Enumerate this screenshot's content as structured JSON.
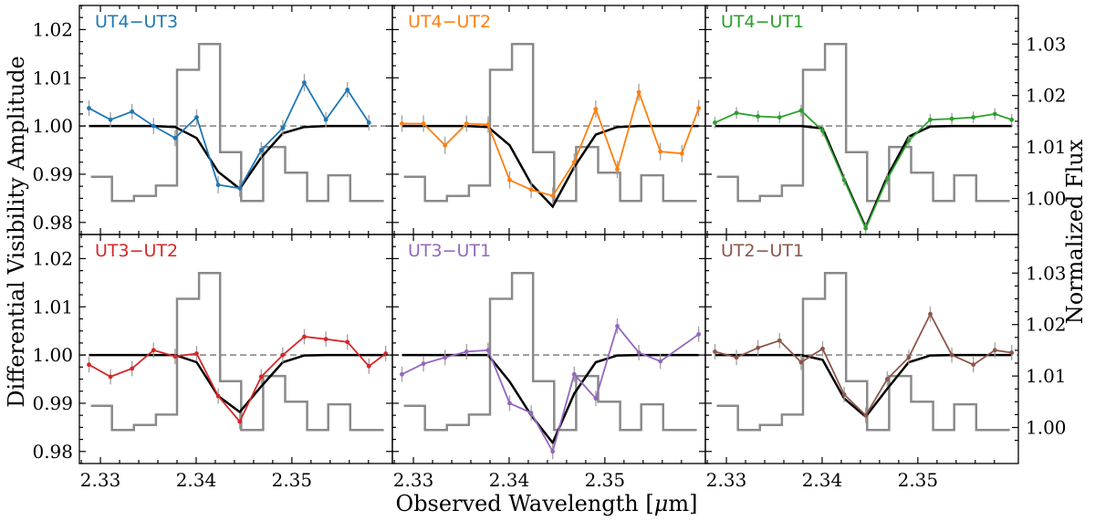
{
  "figure": {
    "xlabel": "Observed Wavelength [$\\mu$m]",
    "xlabel_prefix": "Observed Wavelength [",
    "xlabel_mu": "μ",
    "xlabel_suffix": "m]",
    "ylabel_left": "Differential Visibility Amplitude",
    "ylabel_right": "Normalized Flux",
    "xlim": [
      2.3278,
      2.3605
    ],
    "ylim_left": [
      0.9775,
      1.025
    ],
    "ylim_right": [
      0.993,
      1.0375
    ],
    "xticks": [
      2.33,
      2.34,
      2.35
    ],
    "xtick_labels": [
      "2.33",
      "2.34",
      "2.35"
    ],
    "yticks_left": [
      0.98,
      0.99,
      1.0,
      1.01,
      1.02
    ],
    "ytick_labels_left": [
      "0.98",
      "0.99",
      "1.00",
      "1.01",
      "1.02"
    ],
    "yticks_right": [
      1.0,
      1.01,
      1.02,
      1.03
    ],
    "ytick_labels_right": [
      "1.00",
      "1.01",
      "1.02",
      "1.03"
    ],
    "reference_line": 1.0
  },
  "chart_data": {
    "type": "line",
    "wavelength": [
      2.3288,
      2.33105,
      2.3333,
      2.33555,
      2.3378,
      2.34005,
      2.3423,
      2.34455,
      2.3468,
      2.34905,
      2.3513,
      2.35355,
      2.3558,
      2.35805
    ],
    "spectrum_edges": [
      2.329,
      2.3312,
      2.3335,
      2.3358,
      2.338,
      2.3403,
      2.3425,
      2.3447,
      2.347,
      2.3493,
      2.3516,
      2.3538,
      2.3561,
      2.3584,
      2.3596
    ],
    "spectrum_flux": [
      1.0042,
      0.9995,
      1.0005,
      1.0025,
      1.025,
      1.03,
      1.009,
      0.9995,
      1.01,
      1.005,
      0.9995,
      1.0045,
      0.9995,
      0.9995
    ],
    "panels": [
      {
        "name": "UT4−UT3",
        "color": "#1f77b4",
        "data": [
          1.0037,
          1.0013,
          1.003,
          1.0,
          0.9975,
          1.0018,
          0.9878,
          0.9871,
          0.995,
          0.9996,
          1.009,
          1.0013,
          1.0075,
          1.0007
        ],
        "errors": [
          0.0016,
          0.0016,
          0.0016,
          0.0017,
          0.0017,
          0.0017,
          0.0018,
          0.0018,
          0.0017,
          0.0017,
          0.0018,
          0.0016,
          0.0016,
          0.0016
        ],
        "model": [
          1.0,
          1.0,
          1.0,
          1.0,
          0.9998,
          0.9975,
          0.9905,
          0.987,
          0.9935,
          0.9985,
          0.9998,
          1.0,
          1.0,
          1.0
        ]
      },
      {
        "name": "UT4−UT2",
        "color": "#ff7f0e",
        "data": [
          1.0005,
          1.0005,
          0.996,
          1.0005,
          1.0003,
          0.9888,
          0.9868,
          0.9855,
          0.9925,
          1.0035,
          0.991,
          1.007,
          0.9947,
          0.9943,
          1.0037
        ],
        "wavelength": [
          2.3288,
          2.33105,
          2.3333,
          2.33555,
          2.3378,
          2.34005,
          2.3423,
          2.34455,
          2.3468,
          2.34905,
          2.3513,
          2.35355,
          2.3558,
          2.35805,
          2.3598
        ],
        "errors": [
          0.0017,
          0.0017,
          0.0018,
          0.0017,
          0.0017,
          0.0018,
          0.0018,
          0.0018,
          0.0018,
          0.0018,
          0.0018,
          0.0018,
          0.0018,
          0.0018,
          0.0017
        ],
        "model": [
          1.0,
          1.0,
          1.0,
          1.0,
          0.9998,
          0.996,
          0.988,
          0.9833,
          0.9915,
          0.9982,
          0.9998,
          1.0,
          1.0,
          1.0,
          1.0
        ]
      },
      {
        "name": "UT4−UT1",
        "color": "#2ca02c",
        "data": [
          1.0007,
          1.0027,
          1.002,
          1.0018,
          1.0032,
          0.999,
          0.9888,
          0.9788,
          0.989,
          0.997,
          1.0013,
          1.0015,
          1.0018,
          1.0025,
          1.0013
        ],
        "wavelength": [
          2.3288,
          2.33105,
          2.3333,
          2.33555,
          2.3378,
          2.34005,
          2.3423,
          2.34455,
          2.3468,
          2.34905,
          2.3513,
          2.35355,
          2.3558,
          2.35805,
          2.3598
        ],
        "errors": [
          0.0012,
          0.0012,
          0.0012,
          0.0012,
          0.0012,
          0.0012,
          0.0012,
          0.0012,
          0.0012,
          0.0012,
          0.0012,
          0.0012,
          0.0012,
          0.0012,
          0.0012
        ],
        "model": [
          1.0,
          1.0,
          1.0,
          1.0,
          1.0,
          0.9995,
          0.989,
          0.979,
          0.9895,
          0.9978,
          0.9999,
          1.0,
          1.0,
          1.0,
          1.0
        ]
      },
      {
        "name": "UT3−UT2",
        "color": "#d62728",
        "data": [
          0.998,
          0.9955,
          0.9972,
          1.001,
          0.9997,
          1.0003,
          0.9915,
          0.9862,
          0.9955,
          1.0,
          1.0038,
          1.0033,
          1.0027,
          0.9977,
          1.0003
        ],
        "wavelength": [
          2.3288,
          2.33105,
          2.3333,
          2.33555,
          2.3378,
          2.34005,
          2.3423,
          2.34455,
          2.3468,
          2.34905,
          2.3513,
          2.35355,
          2.3558,
          2.35805,
          2.3598
        ],
        "errors": [
          0.0016,
          0.0016,
          0.0016,
          0.0016,
          0.0016,
          0.0016,
          0.0016,
          0.0016,
          0.0016,
          0.0016,
          0.0016,
          0.0016,
          0.0016,
          0.0016,
          0.0016
        ],
        "model": [
          1.0,
          1.0,
          1.0,
          1.0,
          1.0,
          0.9985,
          0.9915,
          0.9882,
          0.9935,
          0.9985,
          0.9999,
          1.0,
          1.0,
          1.0,
          1.0
        ]
      },
      {
        "name": "UT3−UT1",
        "color": "#9467bd",
        "data": [
          0.996,
          0.9982,
          0.9995,
          1.0007,
          1.001,
          0.99,
          0.988,
          0.98,
          0.996,
          0.991,
          1.006,
          1.0005,
          0.9987,
          1.0043
        ],
        "wavelength": [
          2.3288,
          2.33105,
          2.3333,
          2.33555,
          2.3378,
          2.34005,
          2.3423,
          2.34455,
          2.3468,
          2.34905,
          2.3513,
          2.35355,
          2.3558,
          2.3598
        ],
        "errors": [
          0.0016,
          0.0016,
          0.0016,
          0.0016,
          0.0016,
          0.0016,
          0.0016,
          0.0016,
          0.0016,
          0.0016,
          0.0016,
          0.0016,
          0.0016,
          0.0016
        ],
        "model": [
          1.0,
          1.0,
          1.0,
          1.0,
          1.0,
          0.9945,
          0.9875,
          0.9818,
          0.992,
          0.9985,
          0.9999,
          1.0,
          1.0,
          1.0
        ]
      },
      {
        "name": "UT2−UT1",
        "color": "#8c564b",
        "data": [
          1.0007,
          0.9995,
          1.0015,
          1.003,
          0.9985,
          1.0013,
          0.9918,
          0.9875,
          0.995,
          0.9995,
          1.0085,
          1.0,
          0.998,
          1.001,
          1.0005
        ],
        "wavelength": [
          2.3288,
          2.33105,
          2.3333,
          2.33555,
          2.3378,
          2.34005,
          2.3423,
          2.34455,
          2.3468,
          2.34905,
          2.3513,
          2.35355,
          2.3558,
          2.35805,
          2.3598
        ],
        "errors": [
          0.0016,
          0.0016,
          0.0016,
          0.0016,
          0.0016,
          0.0016,
          0.0016,
          0.0016,
          0.0016,
          0.0016,
          0.0016,
          0.0016,
          0.0016,
          0.0016,
          0.0016
        ],
        "model": [
          1.0,
          1.0,
          1.0,
          1.0,
          1.0,
          0.999,
          0.991,
          0.9872,
          0.993,
          0.9985,
          0.9999,
          1.0,
          1.0,
          1.0,
          1.0
        ]
      }
    ]
  }
}
